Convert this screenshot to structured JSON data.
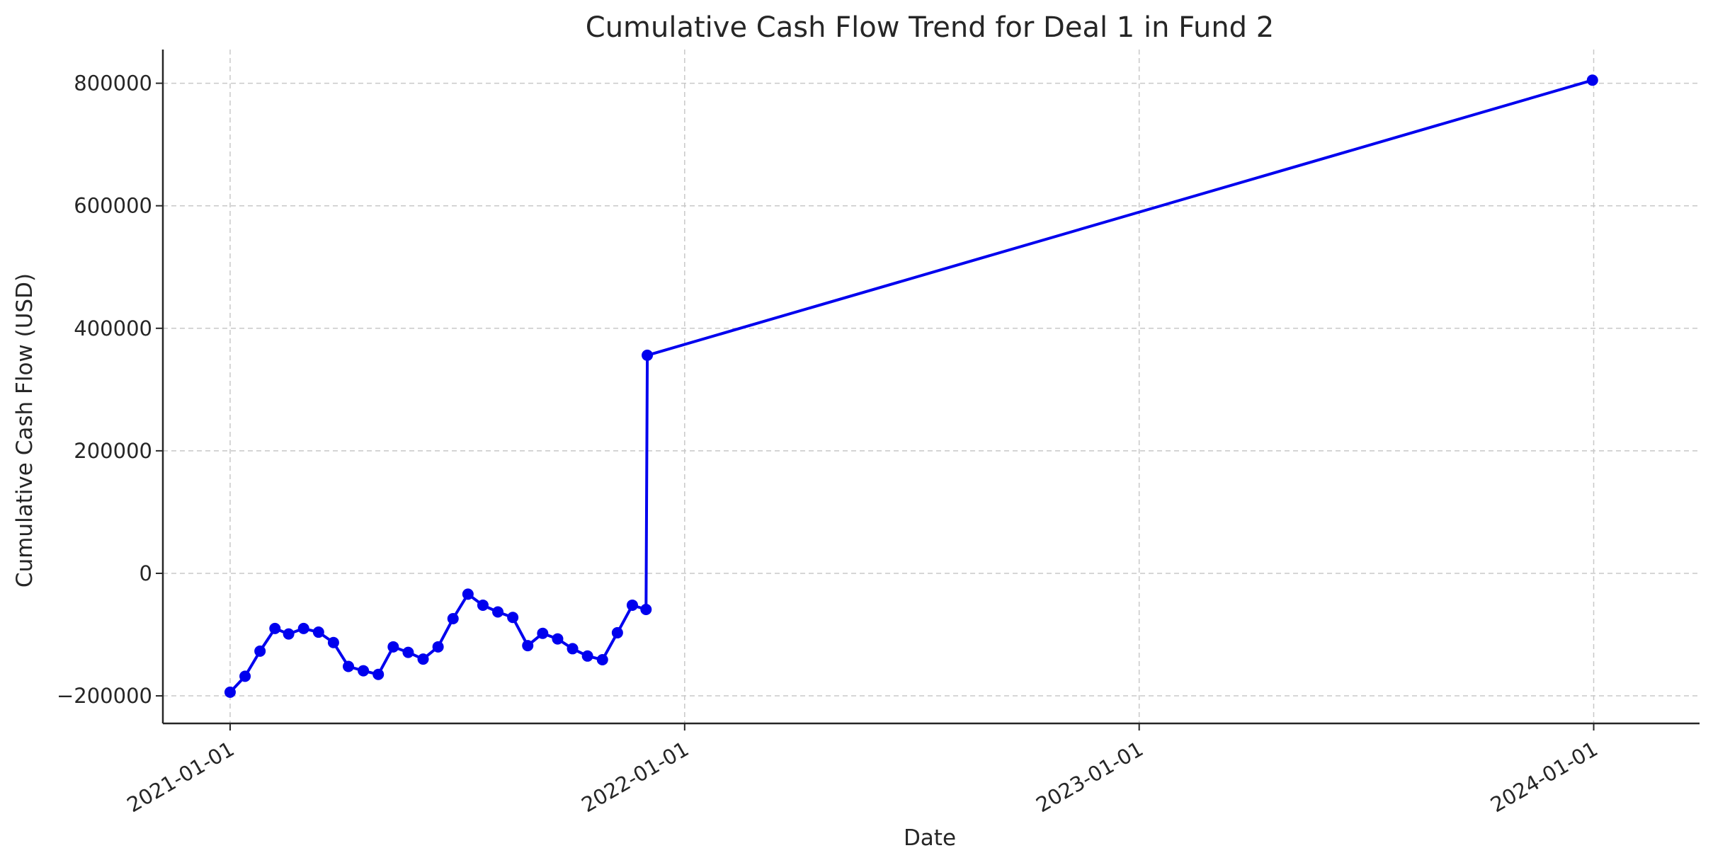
{
  "chart_data": {
    "type": "line",
    "title": "Cumulative Cash Flow Trend for Deal 1 in Fund 2",
    "xlabel": "Date",
    "ylabel": "Cumulative Cash Flow (USD)",
    "xlim": [
      "2020-11-08",
      "2024-03-26"
    ],
    "ylim": [
      -245000,
      855000
    ],
    "x_ticks": [
      "2021-01-01",
      "2022-01-01",
      "2023-01-01",
      "2024-01-01"
    ],
    "y_ticks": [
      -200000,
      0,
      200000,
      400000,
      600000,
      800000
    ],
    "y_tick_labels": [
      "−200000",
      "0",
      "200000",
      "400000",
      "600000",
      "800000"
    ],
    "grid": true,
    "legend": "none",
    "colors": {
      "series": "#0000ee",
      "axis": "#262626",
      "grid": "#c8c8c8"
    },
    "series": [
      {
        "marker": "circle",
        "points": [
          {
            "x": "2021-01-01",
            "y": -194000
          },
          {
            "x": "2021-01-13",
            "y": -168000
          },
          {
            "x": "2021-01-25",
            "y": -127000
          },
          {
            "x": "2021-02-06",
            "y": -90000
          },
          {
            "x": "2021-02-17",
            "y": -99000
          },
          {
            "x": "2021-03-01",
            "y": -90000
          },
          {
            "x": "2021-03-13",
            "y": -96000
          },
          {
            "x": "2021-03-25",
            "y": -113000
          },
          {
            "x": "2021-04-06",
            "y": -152000
          },
          {
            "x": "2021-04-18",
            "y": -159000
          },
          {
            "x": "2021-04-30",
            "y": -165000
          },
          {
            "x": "2021-05-12",
            "y": -120000
          },
          {
            "x": "2021-05-24",
            "y": -129000
          },
          {
            "x": "2021-06-05",
            "y": -140000
          },
          {
            "x": "2021-06-17",
            "y": -120000
          },
          {
            "x": "2021-06-29",
            "y": -74000
          },
          {
            "x": "2021-07-11",
            "y": -34000
          },
          {
            "x": "2021-07-23",
            "y": -52000
          },
          {
            "x": "2021-08-04",
            "y": -63000
          },
          {
            "x": "2021-08-16",
            "y": -72000
          },
          {
            "x": "2021-08-28",
            "y": -118000
          },
          {
            "x": "2021-09-09",
            "y": -98000
          },
          {
            "x": "2021-09-21",
            "y": -107000
          },
          {
            "x": "2021-10-03",
            "y": -123000
          },
          {
            "x": "2021-10-15",
            "y": -135000
          },
          {
            "x": "2021-10-27",
            "y": -141000
          },
          {
            "x": "2021-11-08",
            "y": -97000
          },
          {
            "x": "2021-11-20",
            "y": -52000
          },
          {
            "x": "2021-12-01",
            "y": -59000
          },
          {
            "x": "2021-12-02",
            "y": 356000
          },
          {
            "x": "2023-12-31",
            "y": 805000
          }
        ]
      }
    ]
  }
}
